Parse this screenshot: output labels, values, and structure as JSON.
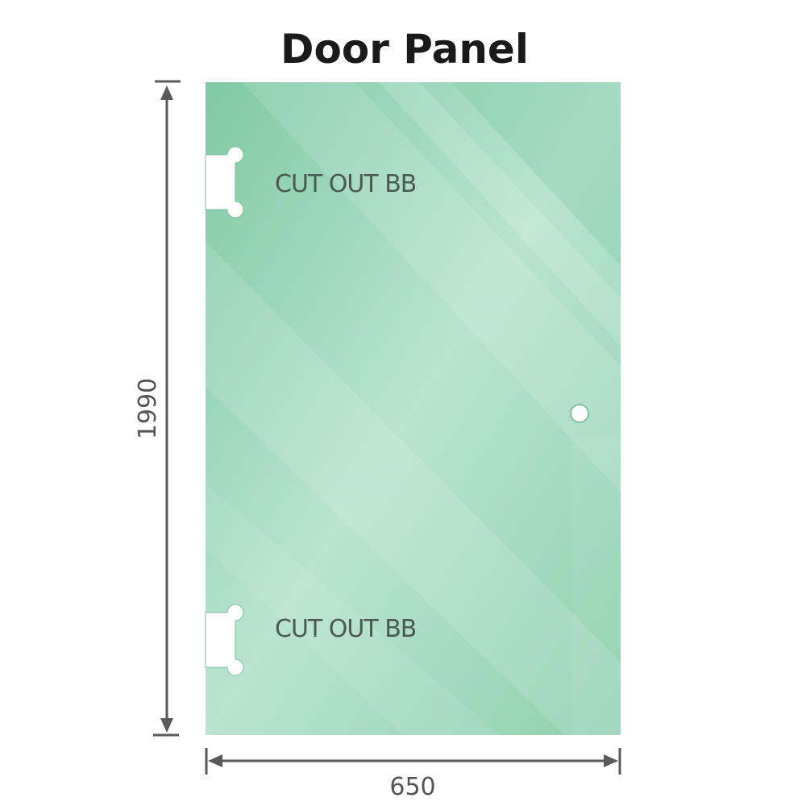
{
  "title": "Door Panel",
  "cutout_top_label": "CUT OUT BB",
  "cutout_bottom_label": "CUT OUT BB",
  "height_dimension": "1990",
  "width_dimension": "650",
  "colors": {
    "glass": "#8fd0ad",
    "glass_light": "#bde6d2",
    "dimension_line": "#5a5a5a",
    "label_text": "#4a5a52"
  }
}
